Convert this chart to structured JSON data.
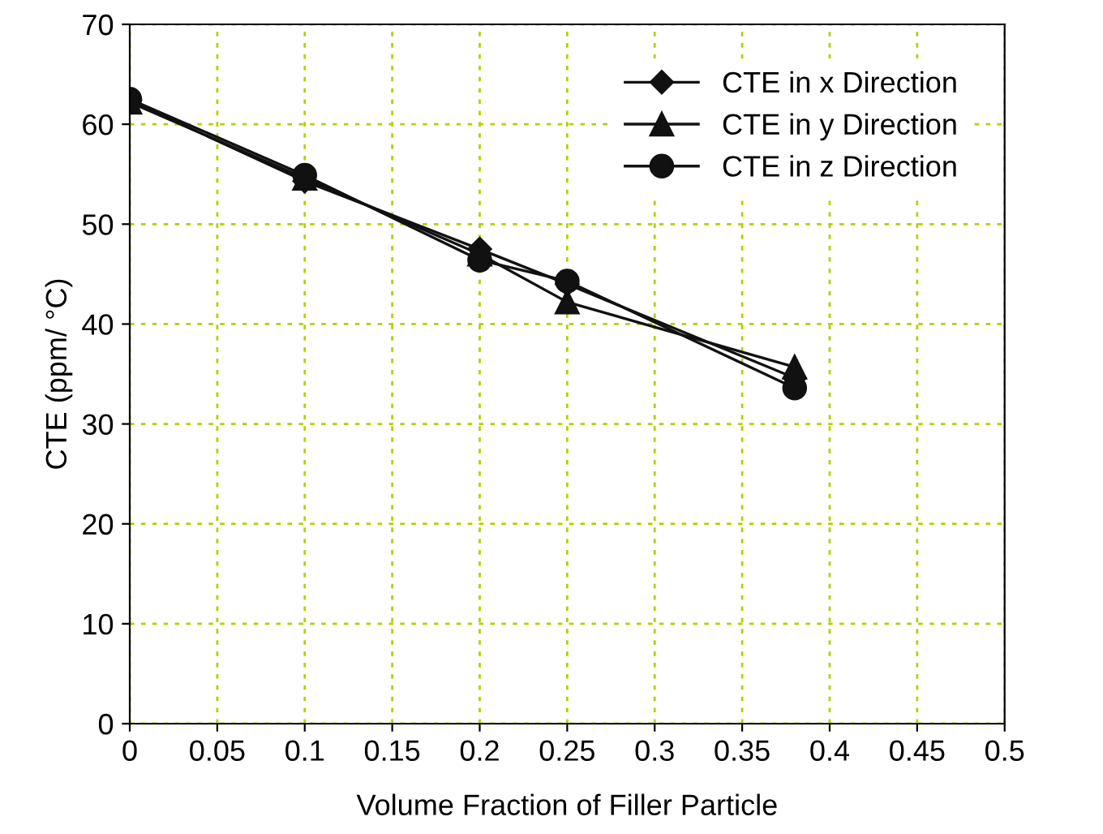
{
  "chart_data": {
    "type": "line",
    "xlabel": "Volume Fraction of Filler Particle",
    "ylabel": "CTE (ppm/ °C)",
    "x": [
      0,
      0.1,
      0.2,
      0.25,
      0.38
    ],
    "series": [
      {
        "name": "CTE in x Direction",
        "color": "#111111",
        "marker": "diamond",
        "values": [
          62.4,
          54.3,
          47.5,
          44.0,
          34.6
        ]
      },
      {
        "name": "CTE in y Direction",
        "color": "#111111",
        "marker": "triangle",
        "values": [
          62.2,
          54.6,
          47.0,
          42.2,
          35.7
        ]
      },
      {
        "name": "CTE in z Direction",
        "color": "#111111",
        "marker": "circle",
        "values": [
          62.5,
          54.9,
          46.4,
          44.3,
          33.6
        ]
      }
    ],
    "xlim": [
      0,
      0.5
    ],
    "xticks": [
      0,
      0.05,
      0.1,
      0.15,
      0.2,
      0.25,
      0.3,
      0.35,
      0.4,
      0.45,
      0.5
    ],
    "ylim": [
      0,
      70
    ],
    "yticks": [
      0,
      10,
      20,
      30,
      40,
      50,
      60,
      70
    ],
    "grid": true,
    "legend": "top right",
    "line_style": "solid"
  }
}
